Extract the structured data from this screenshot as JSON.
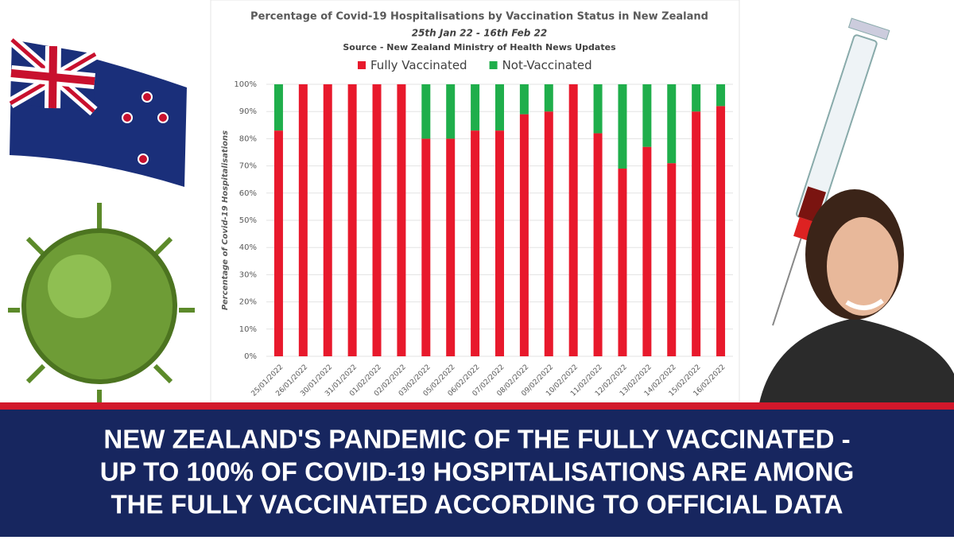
{
  "chart_data": {
    "type": "stacked_bar",
    "title": "Percentage of Covid-19 Hospitalisations by Vaccination Status in New Zealand",
    "subtitle": "25th Jan 22 - 16th Feb 22",
    "source": "Source - New Zealand Ministry of Health News Updates",
    "y_label": "Percentage of Covid-19 Hospitalisations",
    "categories": [
      "25/01/2022",
      "26/01/2022",
      "30/01/2022",
      "31/01/2022",
      "01/02/2022",
      "02/02/2022",
      "03/02/2022",
      "05/02/2022",
      "06/02/2022",
      "07/02/2022",
      "08/02/2022",
      "09/02/2022",
      "10/02/2022",
      "11/02/2022",
      "12/02/2022",
      "13/02/2022",
      "14/02/2022",
      "15/02/2022",
      "16/02/2022"
    ],
    "series": [
      {
        "name": "Fully Vaccinated",
        "color": "#e8192c",
        "values": [
          83,
          100,
          100,
          100,
          100,
          100,
          80,
          80,
          83,
          83,
          89,
          90,
          100,
          82,
          69,
          77,
          71,
          90,
          92
        ]
      },
      {
        "name": "Not-Vaccinated",
        "color": "#1fae4b",
        "values": [
          17,
          0,
          0,
          0,
          0,
          0,
          20,
          20,
          17,
          17,
          11,
          10,
          0,
          18,
          31,
          23,
          29,
          10,
          8
        ]
      }
    ],
    "ylim": [
      0,
      100
    ],
    "yticks": [
      {
        "value": 0,
        "label": "0%"
      },
      {
        "value": 10,
        "label": "10%"
      },
      {
        "value": 20,
        "label": "20%"
      },
      {
        "value": 30,
        "label": "30%"
      },
      {
        "value": 40,
        "label": "40%"
      },
      {
        "value": 50,
        "label": "50%"
      },
      {
        "value": 60,
        "label": "60%"
      },
      {
        "value": 70,
        "label": "70%"
      },
      {
        "value": 80,
        "label": "80%"
      },
      {
        "value": 90,
        "label": "90%"
      },
      {
        "value": 100,
        "label": "100%"
      }
    ],
    "grid": true,
    "legend": "top"
  },
  "headline": [
    "NEW ZEALAND'S PANDEMIC OF THE FULLY VACCINATED -",
    "UP TO 100% OF COVID-19 HOSPITALISATIONS ARE AMONG",
    "THE FULLY VACCINATED ACCORDING TO OFFICIAL DATA"
  ]
}
